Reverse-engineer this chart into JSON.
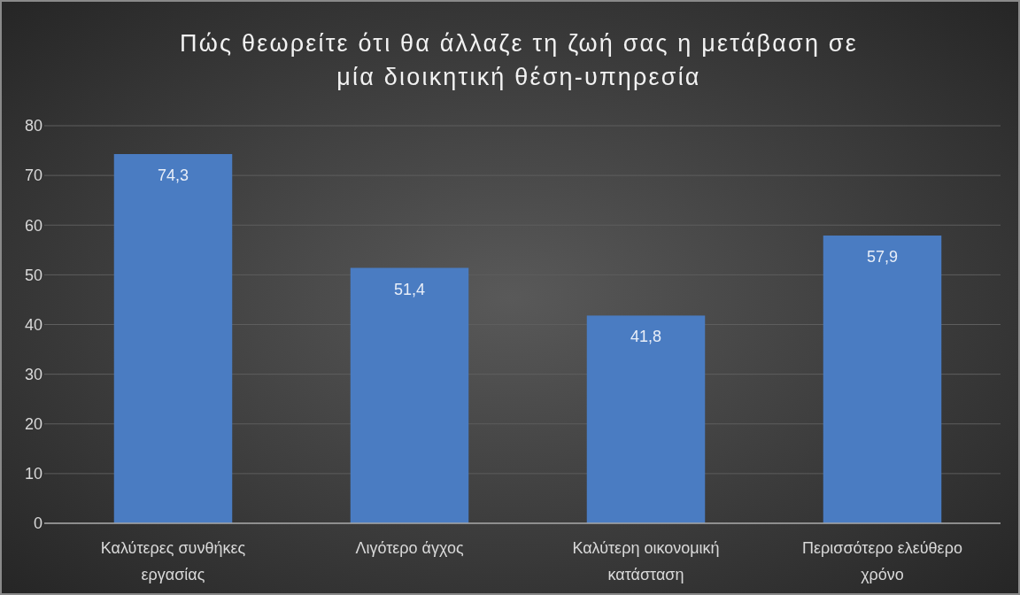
{
  "chart_data": {
    "type": "bar",
    "title": "Πώς θεωρείτε ότι θα άλλαζε τη ζωή σας η μετάβαση σε μία διοικητική θέση-υπηρεσία",
    "categories": [
      "Καλύτερες συνθήκες εργασίας",
      "Λιγότερο άγχος",
      "Καλύτερη οικονομική κατάσταση",
      "Περισσότερο ελεύθερο χρόνο"
    ],
    "values": [
      74.3,
      51.4,
      41.8,
      57.9
    ],
    "value_labels": [
      "74,3",
      "51,4",
      "41,8",
      "57,9"
    ],
    "color": "#4a7cc2",
    "ylim": [
      0,
      80
    ],
    "yticks": [
      0,
      10,
      20,
      30,
      40,
      50,
      60,
      70,
      80
    ],
    "grid": "y"
  }
}
